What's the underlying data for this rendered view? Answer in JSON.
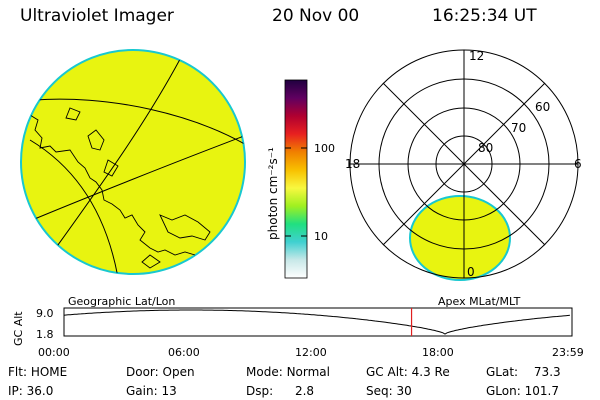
{
  "header": {
    "instrument": "Ultraviolet Imager",
    "date": "20 Nov 00",
    "time": "16:25:34 UT"
  },
  "colors": {
    "image_fill": "#e8f410",
    "image_edge": "#18c8d0",
    "line": "#000000",
    "time_marker": "#e02020"
  },
  "colorbar": {
    "label": "photon cm⁻²s⁻¹",
    "ticks": [
      "100",
      "10"
    ],
    "stops": [
      "#ffffff",
      "#c8e8e8",
      "#40d0d0",
      "#20e080",
      "#a0f020",
      "#f8f840",
      "#f8c000",
      "#f08000",
      "#e82020",
      "#b00030",
      "#600060",
      "#200040"
    ]
  },
  "polar_plot": {
    "lat_labels": [
      "80",
      "70",
      "60"
    ],
    "mlt_labels": {
      "top": "12",
      "left": "18",
      "right": "6",
      "bottom": "0"
    }
  },
  "panel_labels": {
    "left": "Geographic Lat/Lon",
    "right": "Apex MLat/MLT"
  },
  "altitude_plot": {
    "ylabel": "GC Alt",
    "yticks": [
      "9.0",
      "1.8"
    ],
    "xticks": [
      "00:00",
      "06:00",
      "12:00",
      "18:00",
      "23:59"
    ],
    "current_time_hours": 16.42
  },
  "status": {
    "flt": {
      "label": "Flt:",
      "value": "HOME"
    },
    "door": {
      "label": "Door:",
      "value": "Open"
    },
    "mode": {
      "label": "Mode:",
      "value": "Normal"
    },
    "gcalt": {
      "label": "GC Alt:",
      "value": "4.3 Re"
    },
    "glat": {
      "label": "GLat:",
      "value": "73.3"
    },
    "ip": {
      "label": "IP:",
      "value": "36.0"
    },
    "gain": {
      "label": "Gain:",
      "value": "13"
    },
    "dsp": {
      "label": "Dsp:",
      "value": "2.8"
    },
    "seq": {
      "label": "Seq:",
      "value": "30"
    },
    "glon": {
      "label": "GLon:",
      "value": "101.7"
    }
  }
}
